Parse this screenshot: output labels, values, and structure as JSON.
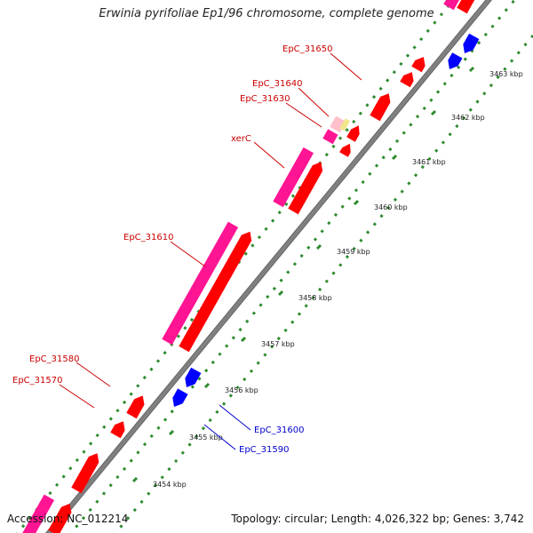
{
  "title": "Erwinia pyrifoliae Ep1/96 chromosome, complete genome",
  "footer": {
    "accession": "Accession: NC_012214",
    "summary": "Topology: circular; Length: 4,026,322 bp; Genes: 3,742"
  },
  "colors": {
    "forward_gene": "#ff0000",
    "reverse_gene": "#0000ff",
    "cds": "#ff1493",
    "partial": "#ffc0cb",
    "rna": "#f0e68c",
    "backbone": "#808080",
    "dots": "#2e8b2e",
    "label_forward": "#cc0000",
    "label_reverse": "#0000cc"
  },
  "scale_ticks": [
    "3454 kbp",
    "3455 kbp",
    "3456 kbp",
    "3457 kbp",
    "3458 kbp",
    "3459 kbp",
    "3460 kbp",
    "3461 kbp",
    "3462 kbp",
    "3463 kbp"
  ],
  "gene_labels_forward": [
    "EpC_31650",
    "EpC_31640",
    "EpC_31630",
    "xerC",
    "EpC_31610",
    "EpC_31580",
    "EpC_31570"
  ],
  "gene_labels_reverse": [
    "EpC_31600",
    "EpC_31590"
  ]
}
